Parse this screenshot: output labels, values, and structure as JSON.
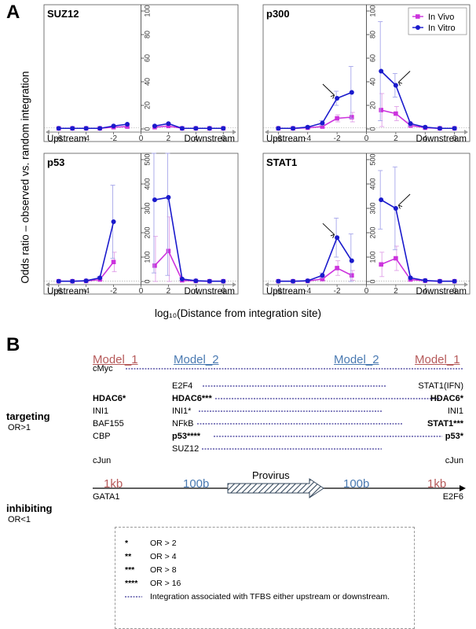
{
  "figure": {
    "panel_a_letter": "A",
    "panel_b_letter": "B",
    "y_axis_label": "Odds ratio – observed vs. random integration",
    "x_axis_label": "log₁₀(Distance from integration site)",
    "upstream_label": "Upstream",
    "downstream_label": "Downstream",
    "legend_in_vivo": "In Vivo",
    "legend_in_vitro": "In Vitro"
  },
  "chart_data": [
    {
      "type": "line",
      "title": "SUZ12",
      "x": [
        -6,
        -5,
        -4,
        -3,
        -2,
        -1,
        1,
        2,
        3,
        4,
        5,
        6
      ],
      "ylim": [
        0,
        100
      ],
      "yticks": [
        0,
        20,
        40,
        60,
        80,
        100
      ],
      "xticks": [
        -6,
        -4,
        -2,
        0,
        2,
        4,
        6
      ],
      "series": [
        {
          "name": "In Vivo",
          "color": "#cc33dd",
          "values": [
            0.5,
            0.5,
            0.5,
            0.5,
            1.5,
            2,
            1.5,
            2.5,
            0.5,
            0.5,
            0.5,
            0.5
          ]
        },
        {
          "name": "In Vitro",
          "color": "#1a1acc",
          "values": [
            0.5,
            0.5,
            0.5,
            0.5,
            2.5,
            4,
            2.5,
            4.5,
            0.5,
            0.5,
            0.5,
            0.5
          ]
        }
      ]
    },
    {
      "type": "line",
      "title": "p300",
      "x": [
        -6,
        -5,
        -4,
        -3,
        -2,
        -1,
        1,
        2,
        3,
        4,
        5,
        6
      ],
      "ylim": [
        0,
        100
      ],
      "yticks": [
        0,
        20,
        40,
        60,
        80,
        100
      ],
      "xticks": [
        -6,
        -4,
        -2,
        0,
        2,
        4,
        6
      ],
      "arrows_at": [
        {
          "x": -2,
          "series": "In Vitro"
        },
        {
          "x": 2,
          "series": "In Vitro"
        }
      ],
      "legend": "top-right",
      "series": [
        {
          "name": "In Vivo",
          "color": "#cc33dd",
          "values": [
            0.5,
            0.5,
            1,
            2,
            9,
            10,
            16,
            13,
            3,
            1,
            0.5,
            0.5
          ],
          "err": [
            0,
            0,
            0.5,
            1,
            3,
            4,
            14,
            6,
            2,
            0.5,
            0,
            0
          ]
        },
        {
          "name": "In Vitro",
          "color": "#1a1acc",
          "values": [
            0.5,
            0.5,
            1.5,
            5,
            26,
            31,
            49,
            37,
            4.5,
            1.5,
            0.5,
            0.5
          ],
          "err": [
            0,
            0,
            0.5,
            2,
            6,
            22,
            42,
            10,
            2,
            0.5,
            0,
            0
          ]
        }
      ]
    },
    {
      "type": "line",
      "title": "p53",
      "x": [
        -6,
        -5,
        -4,
        -3,
        -2,
        -1,
        1,
        2,
        3,
        4,
        5,
        6
      ],
      "ylim": [
        0,
        500
      ],
      "yticks": [
        0,
        100,
        200,
        300,
        400,
        500
      ],
      "xticks": [
        -6,
        -4,
        -2,
        0,
        2,
        4,
        6
      ],
      "series": [
        {
          "name": "In Vivo",
          "color": "#cc33dd",
          "values": [
            1,
            1,
            2,
            8,
            80,
            null,
            65,
            125,
            5,
            2,
            1,
            1
          ],
          "err": [
            0,
            0,
            1,
            4,
            40,
            null,
            120,
            140,
            4,
            1,
            0,
            0
          ]
        },
        {
          "name": "In Vitro",
          "color": "#1a1acc",
          "values": [
            1,
            1,
            3,
            15,
            245,
            null,
            335,
            345,
            10,
            3,
            1,
            1
          ],
          "err": [
            0,
            0,
            1,
            5,
            150,
            null,
            300,
            320,
            5,
            1,
            0,
            0
          ]
        }
      ]
    },
    {
      "type": "line",
      "title": "STAT1",
      "x": [
        -6,
        -5,
        -4,
        -3,
        -2,
        -1,
        1,
        2,
        3,
        4,
        5,
        6
      ],
      "ylim": [
        0,
        500
      ],
      "yticks": [
        0,
        100,
        200,
        300,
        400,
        500
      ],
      "xticks": [
        -6,
        -4,
        -2,
        0,
        2,
        4,
        6
      ],
      "arrows_at": [
        {
          "x": -2,
          "series": "In Vitro"
        },
        {
          "x": 2,
          "series": "In Vitro"
        }
      ],
      "series": [
        {
          "name": "In Vivo",
          "color": "#cc33dd",
          "values": [
            1,
            1,
            2,
            10,
            55,
            25,
            70,
            95,
            8,
            3,
            1,
            1
          ],
          "err": [
            0,
            0,
            1,
            5,
            30,
            20,
            50,
            50,
            4,
            1,
            0,
            0
          ]
        },
        {
          "name": "In Vitro",
          "color": "#1a1acc",
          "values": [
            1,
            1,
            3,
            25,
            180,
            85,
            335,
            300,
            15,
            4,
            1,
            1
          ],
          "err": [
            0,
            0,
            1,
            10,
            80,
            110,
            120,
            170,
            6,
            1,
            0,
            0
          ]
        }
      ]
    }
  ],
  "diagram": {
    "model1_left": "Model_1",
    "model2_left": "Model_2",
    "model2_right": "Model_2",
    "model1_right": "Model_1",
    "targeting_label": "targeting",
    "targeting_sub": "OR>1",
    "inhibiting_label": "inhibiting",
    "inhibiting_sub": "OR<1",
    "cmyc": "cMyc",
    "left_col": [
      "HDAC6*",
      "INI1",
      "BAF155",
      "CBP"
    ],
    "cjun_left": "cJun",
    "middle_col": [
      "E2F4",
      "HDAC6***",
      "INI1*",
      "NFkB",
      "p53****",
      "SUZ12"
    ],
    "right_col": [
      "STAT1(IFN)",
      "HDAC6*",
      "INI1",
      "STAT1***",
      "p53*"
    ],
    "cjun_right": "cJun",
    "dist_1kb_left": "1kb",
    "dist_100b_left": "100b",
    "provirus": "Provirus",
    "dist_100b_right": "100b",
    "dist_1kb_right": "1kb",
    "gata1": "GATA1",
    "e2f6": "E2F6"
  },
  "key": {
    "rows": [
      {
        "stars": "*",
        "text": "OR  >  2"
      },
      {
        "stars": "**",
        "text": "OR  >  4"
      },
      {
        "stars": "***",
        "text": "OR  >  8"
      },
      {
        "stars": "****",
        "text": "OR  >  16"
      }
    ],
    "dotted_text": "Integration associated with TFBS either upstream or downstream."
  }
}
